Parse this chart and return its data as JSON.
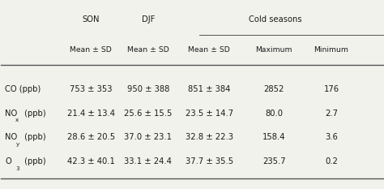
{
  "col_headers_top": [
    "SON",
    "DJF",
    "Cold seasons"
  ],
  "col_headers_sub": [
    "Mean ± SD",
    "Mean ± SD",
    "Mean ± SD",
    "Maximum",
    "Minimum"
  ],
  "rows": [
    {
      "label": "CO (ppb)",
      "label_sub": null,
      "label_rest": null,
      "son": "753 ± 353",
      "djf": "950 ± 388",
      "cold_mean": "851 ± 384",
      "maximum": "2852",
      "minimum": "176"
    },
    {
      "label": "NO",
      "label_sub": "x",
      "label_rest": " (ppb)",
      "son": "21.4 ± 13.4",
      "djf": "25.6 ± 15.5",
      "cold_mean": "23.5 ± 14.7",
      "maximum": "80.0",
      "minimum": "2.7"
    },
    {
      "label": "NO",
      "label_sub": "y",
      "label_rest": " (ppb)",
      "son": "28.6 ± 20.5",
      "djf": "37.0 ± 23.1",
      "cold_mean": "32.8 ± 22.3",
      "maximum": "158.4",
      "minimum": "3.6"
    },
    {
      "label": "O",
      "label_sub": "3",
      "label_rest": " (ppb)",
      "son": "42.3 ± 40.1",
      "djf": "33.1 ± 24.4",
      "cold_mean": "37.7 ± 35.5",
      "maximum": "235.7",
      "minimum": "0.2"
    }
  ],
  "background_color": "#f2f2ed",
  "text_color": "#1a1a1a",
  "font_size": 7.2,
  "line_color": "#555555"
}
